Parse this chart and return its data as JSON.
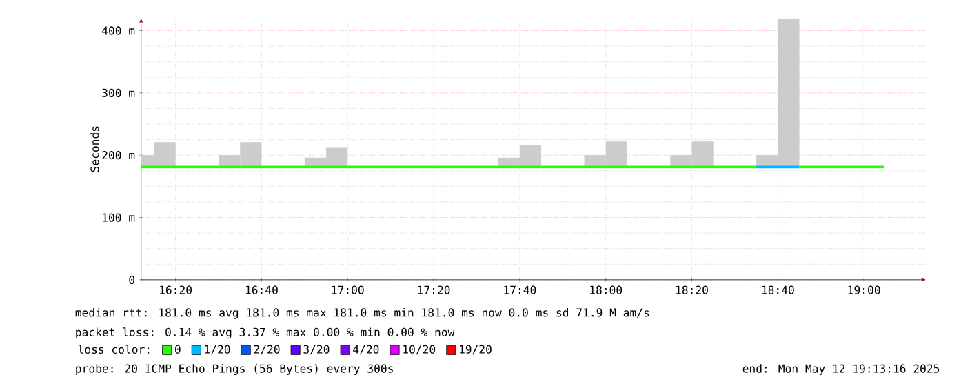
{
  "chart_data": {
    "type": "line",
    "ylabel": "Seconds",
    "legend_title": "loss color:",
    "legend": "bottom",
    "grid": true,
    "xlim": [
      16.2,
      19.24
    ],
    "ylim": [
      0,
      420
    ],
    "xticks": [
      {
        "value": 16.3333,
        "label": "16:20"
      },
      {
        "value": 16.6667,
        "label": "16:40"
      },
      {
        "value": 17,
        "label": "17:00"
      },
      {
        "value": 17.3333,
        "label": "17:20"
      },
      {
        "value": 17.6667,
        "label": "17:40"
      },
      {
        "value": 18,
        "label": "18:00"
      },
      {
        "value": 18.3333,
        "label": "18:20"
      },
      {
        "value": 18.6667,
        "label": "18:40"
      },
      {
        "value": 19,
        "label": "19:00"
      }
    ],
    "yticks": [
      0,
      {
        "value": 100,
        "label": "100 m"
      },
      {
        "value": 200,
        "label": "200 m"
      },
      {
        "value": 300,
        "label": "300 m"
      },
      {
        "value": 400,
        "label": "400 m"
      }
    ],
    "series": [
      {
        "type": "bar",
        "color": "#cccccc",
        "x": [
          16.2083,
          16.2917,
          16.5417,
          16.625,
          16.875,
          16.9583,
          17.625,
          17.7083,
          17.9583,
          18.0417,
          18.2917,
          18.375,
          18.625,
          18.7083
        ],
        "base": [
          181,
          181,
          181,
          181,
          181,
          181,
          181,
          181,
          181,
          181,
          181,
          181,
          181,
          181
        ],
        "values": [
          19,
          40,
          19,
          40,
          15,
          32,
          15,
          35,
          19,
          41,
          19,
          41,
          19,
          238
        ]
      },
      {
        "name": "0",
        "color": "#26ff00",
        "x": [
          16.2,
          18.5833,
          18.6,
          18.75,
          19.08
        ],
        "values": [
          181,
          181,
          null,
          181,
          181
        ]
      },
      {
        "name": "1/20",
        "color": "#00b8ff",
        "x": [
          18.5833,
          18.75
        ],
        "values": [
          181,
          181
        ]
      },
      {
        "name": "2/20",
        "color": "#0059ff"
      },
      {
        "name": "3/20",
        "color": "#5e00ff"
      },
      {
        "name": "4/20",
        "color": "#7e00ff"
      },
      {
        "name": "10/20",
        "color": "#dd00ff"
      },
      {
        "name": "19/20",
        "color": "#ff0000"
      }
    ],
    "annotations": [
      "median rtt: 181.0 ms avg 181.0 ms max 181.0 ms min 181.0 ms now 0.0 ms sd 71.9 M am/s",
      "packet loss: 0.14 % avg 3.37 % max 0.00 % min 0.00 % now",
      "probe: 20 ICMP Echo Pings (56 Bytes) every 300s",
      "end: Mon May 12 19:13:16 2025"
    ]
  }
}
